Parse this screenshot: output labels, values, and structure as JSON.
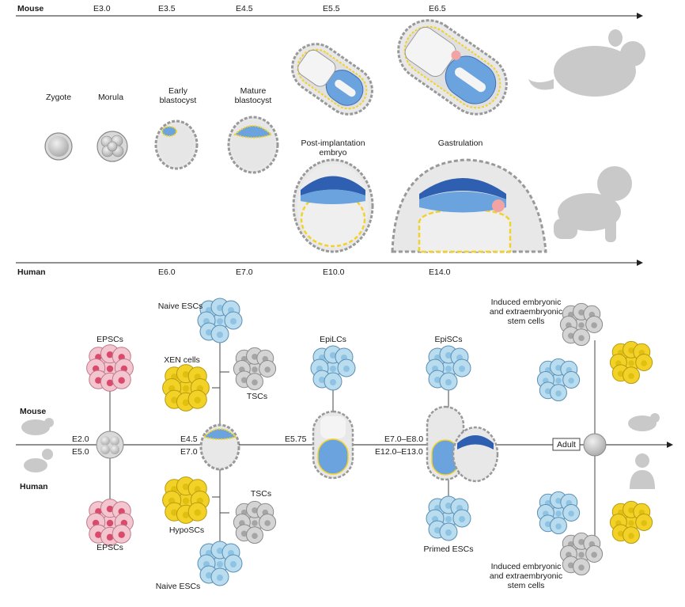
{
  "timeline": {
    "mouse_label": "Mouse",
    "human_label": "Human",
    "mouse_days": [
      "E3.0",
      "E3.5",
      "E4.5",
      "E5.5",
      "E6.5"
    ],
    "human_days": [
      "E6.0",
      "E7.0",
      "E10.0",
      "E14.0"
    ]
  },
  "stages": {
    "zygote": "Zygote",
    "morula": "Morula",
    "early_blastocyst": [
      "Early",
      "blastocyst"
    ],
    "mature_blastocyst": [
      "Mature",
      "blastocyst"
    ],
    "post_implantation": [
      "Post-implantation",
      "embryo"
    ],
    "gastrulation": "Gastrulation"
  },
  "lineage": {
    "mouse_label": "Mouse",
    "human_label": "Human",
    "nodes": {
      "n1_mouse": "E2.0",
      "n1_human": "E5.0",
      "n2_mouse": "E4.5",
      "n2_human": "E7.0",
      "n3_mouse": "E5.75",
      "n4_mouse": "E7.0–E8.0",
      "n4_human": "E12.0–E13.0",
      "adult": "Adult"
    },
    "cells": {
      "epscs_top": "EPSCs",
      "epscs_bottom": "EPSCs",
      "naive_top": "Naive ESCs",
      "xen": "XEN cells",
      "tscs_top": "TSCs",
      "hyposcs": "HypoSCs",
      "tscs_bottom": "TSCs",
      "naive_bottom": "Naive ESCs",
      "epilcs": "EpiLCs",
      "episcs": "EpiSCs",
      "primed": "Primed ESCs",
      "induced_top": [
        "Induced embryonic",
        "and extraembryonic",
        "stem cells"
      ],
      "induced_bottom": [
        "Induced embryonic",
        "and extraembryonic",
        "stem cells"
      ]
    }
  },
  "colors": {
    "blue_cell": "#b9dcef",
    "gray_cell": "#d4d4d4",
    "yellow_cell": "#f2d227",
    "pink_cell": "#f2c5cf",
    "pink_nucleus": "#d94a6c",
    "epiblast_blue": "#6aa3dd",
    "dark_blue": "#2f5fb0",
    "silhouette": "#c9c9c9"
  }
}
